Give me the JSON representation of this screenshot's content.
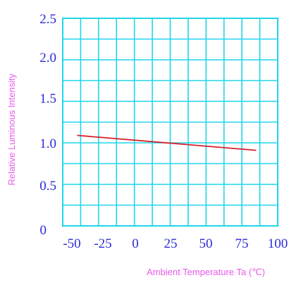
{
  "chart_data": {
    "type": "line",
    "xlabel": "Ambient Temperature Ta (℃)",
    "ylabel": "Relative Luminous Intensity",
    "xlim": [
      -50,
      100
    ],
    "ylim": [
      0,
      2.5
    ],
    "x_ticks": [
      "-50",
      "-25",
      "0",
      "25",
      "50",
      "75",
      "100"
    ],
    "y_ticks": [
      "0",
      "0.5",
      "1.0",
      "1.5",
      "2.0",
      "2.5"
    ],
    "x_minor_step": 12.5,
    "y_minor_step": 0.25,
    "grid": true,
    "series": [
      {
        "x": [
          -40,
          85
        ],
        "y": [
          1.09,
          0.91
        ]
      }
    ],
    "colors": {
      "grid": "#1fd6ec",
      "series": "#d8202a",
      "ticks": "#2a2ad8",
      "axis_titles": "#e85ae8"
    }
  }
}
